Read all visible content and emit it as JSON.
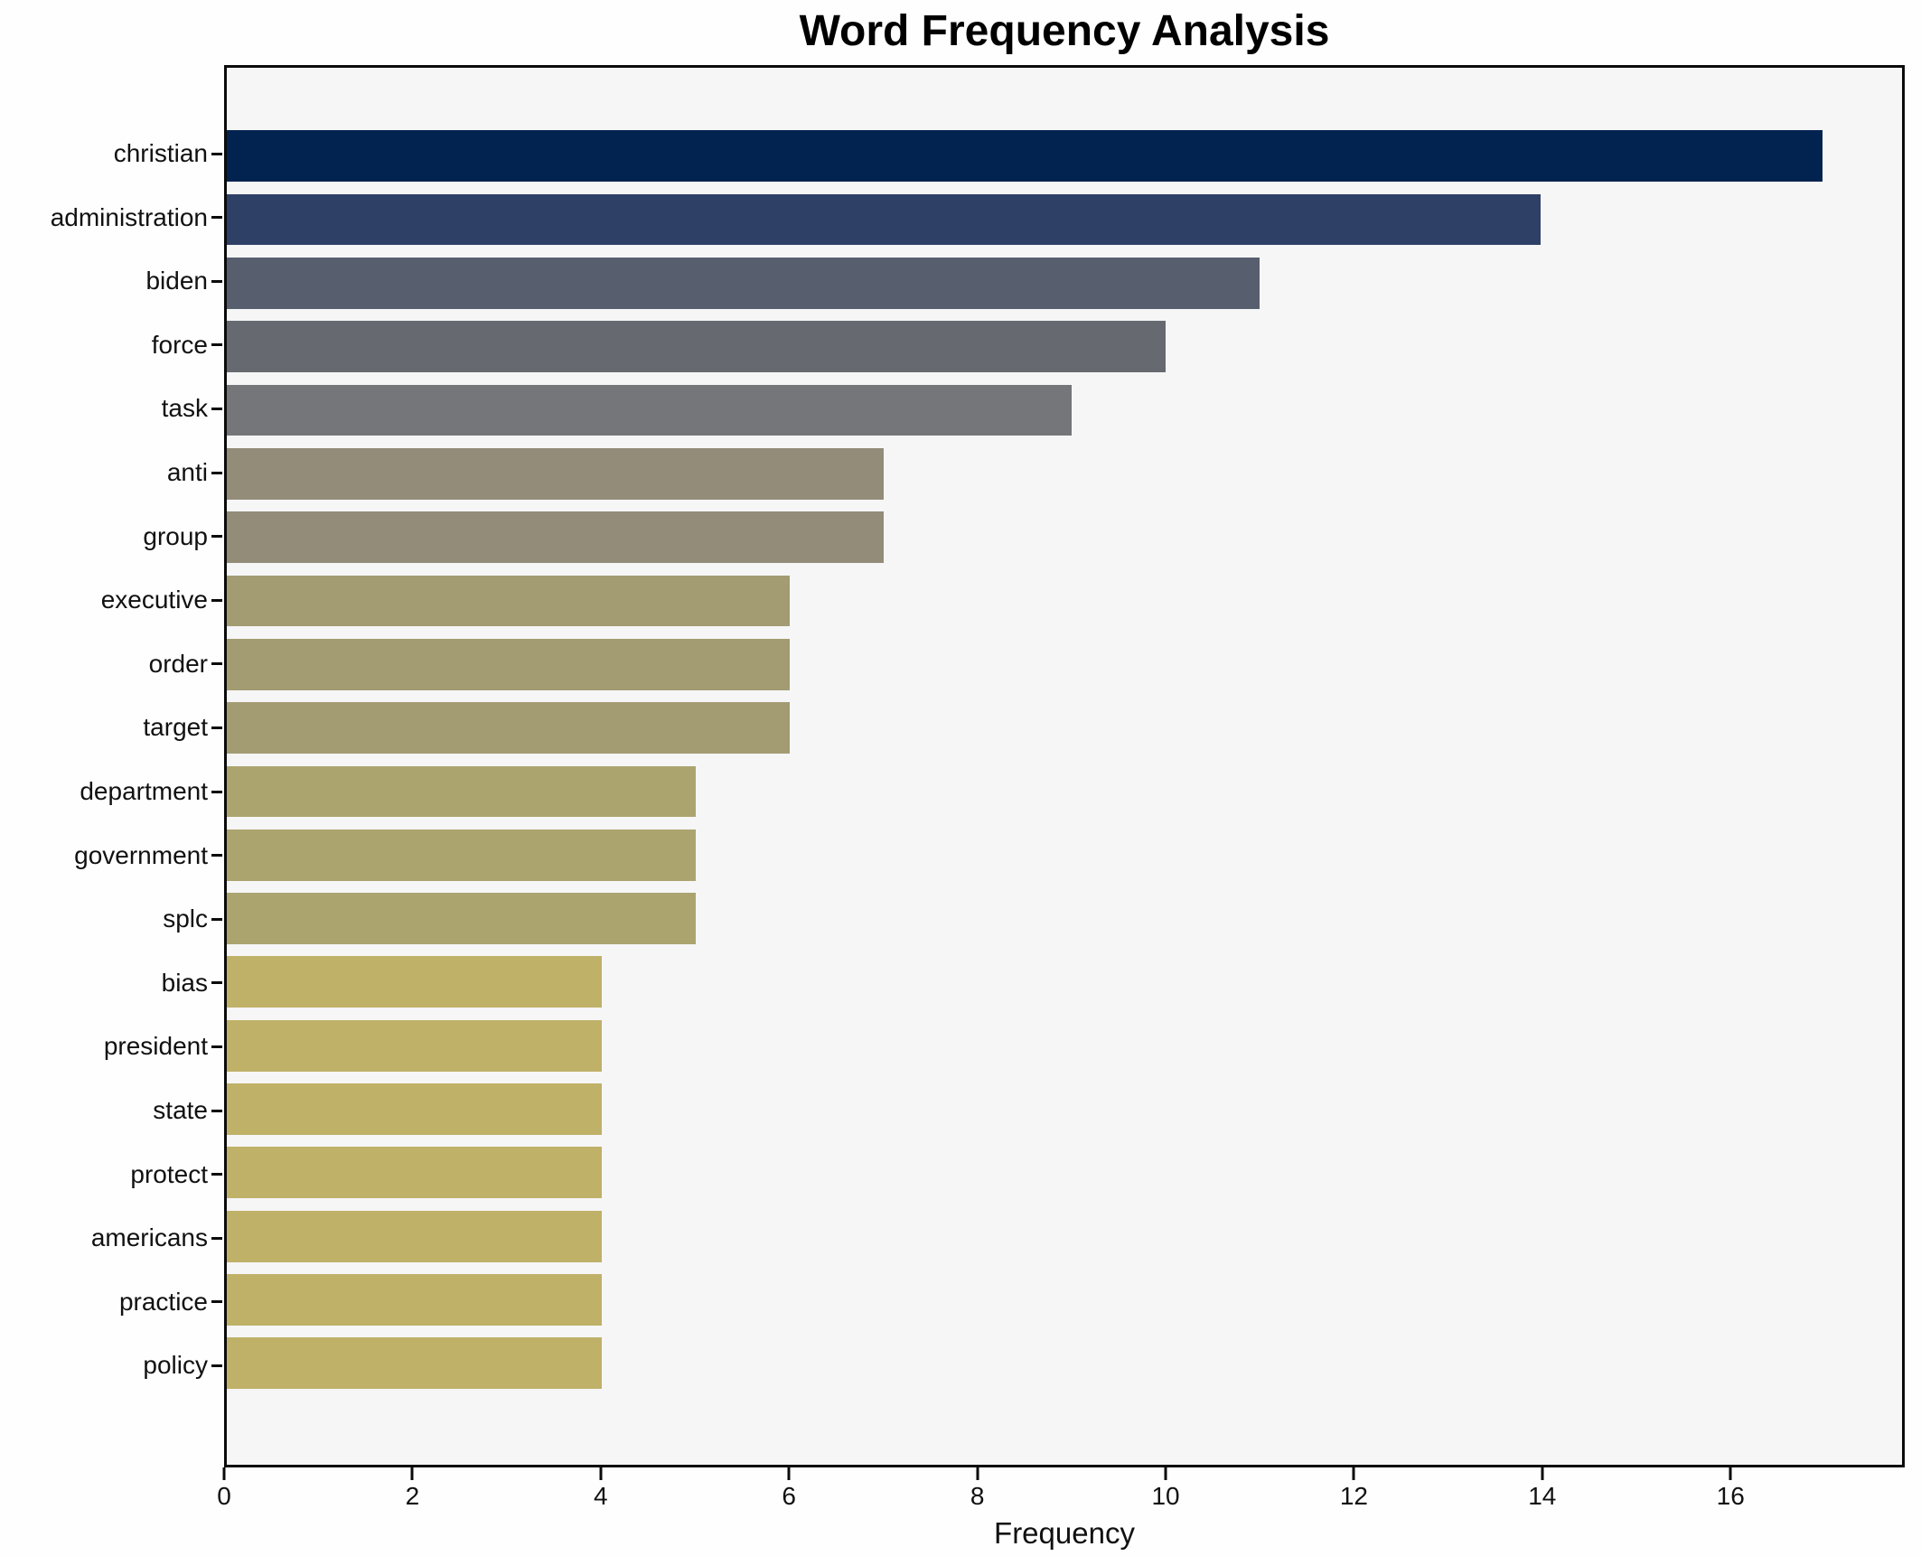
{
  "chart_data": {
    "type": "bar",
    "orientation": "horizontal",
    "title": "Word Frequency Analysis",
    "xlabel": "Frequency",
    "ylabel": "",
    "categories": [
      "christian",
      "administration",
      "biden",
      "force",
      "task",
      "anti",
      "group",
      "executive",
      "order",
      "target",
      "department",
      "government",
      "splc",
      "bias",
      "president",
      "state",
      "protect",
      "americans",
      "practice",
      "policy"
    ],
    "values": [
      17,
      14,
      11,
      10,
      9,
      7,
      7,
      6,
      6,
      6,
      5,
      5,
      5,
      4,
      4,
      4,
      4,
      4,
      4,
      4
    ],
    "bar_colors": [
      "#02234f",
      "#2f4067",
      "#575f6e",
      "#666a70",
      "#75767a",
      "#938c79",
      "#938c79",
      "#a39c73",
      "#a39c73",
      "#a39c73",
      "#aba46f",
      "#aba46f",
      "#aba46f",
      "#bfb168",
      "#bfb168",
      "#bfb168",
      "#bfb168",
      "#bfb168",
      "#bfb168",
      "#bfb168"
    ],
    "x_ticks": [
      0,
      2,
      4,
      6,
      8,
      10,
      12,
      14,
      16
    ],
    "xlim": [
      0,
      17.85
    ],
    "grid": false,
    "legend": null,
    "plot_background": "#f6f6f7",
    "figure_background": "#fefefe",
    "spine_color": "#0b0b0b",
    "text_color": "#111111"
  }
}
